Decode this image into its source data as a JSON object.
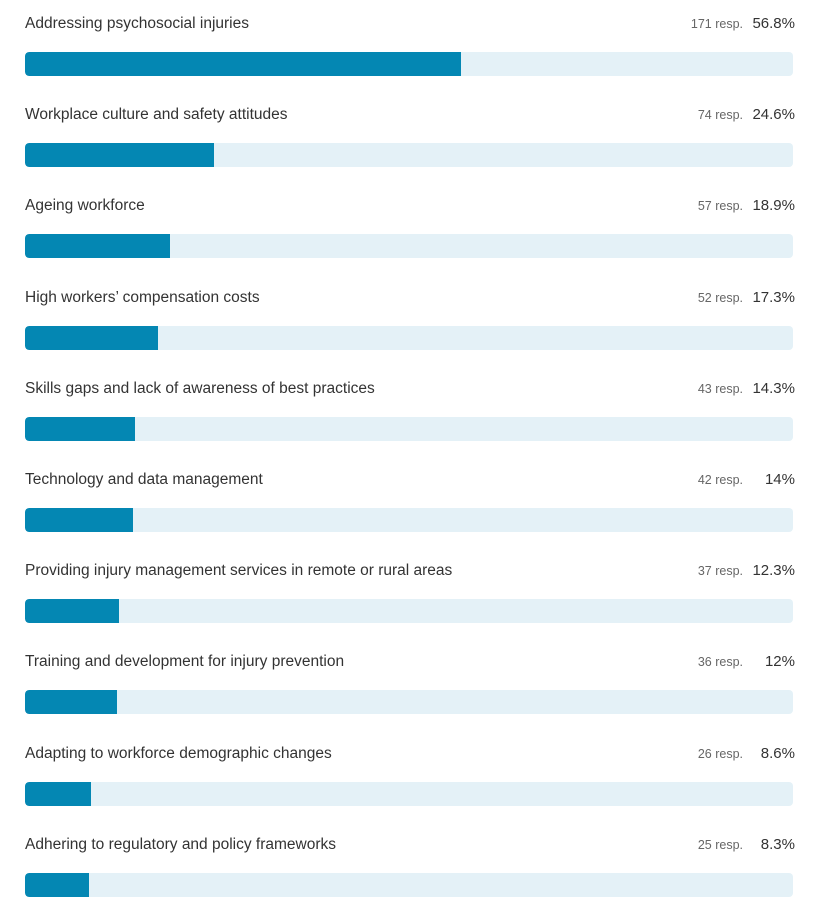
{
  "chart_data": {
    "type": "bar",
    "orientation": "horizontal",
    "colors": {
      "bar": "#0487b3",
      "track": "#e4f1f7"
    },
    "items": [
      {
        "label": "Addressing psychosocial injuries",
        "responses": "171 resp.",
        "percent_label": "56.8%",
        "percent": 56.8
      },
      {
        "label": "Workplace culture and safety attitudes",
        "responses": "74 resp.",
        "percent_label": "24.6%",
        "percent": 24.6
      },
      {
        "label": "Ageing workforce",
        "responses": "57 resp.",
        "percent_label": "18.9%",
        "percent": 18.9
      },
      {
        "label": "High workers’ compensation costs",
        "responses": "52 resp.",
        "percent_label": "17.3%",
        "percent": 17.3
      },
      {
        "label": "Skills gaps and lack of awareness of best practices",
        "responses": "43 resp.",
        "percent_label": "14.3%",
        "percent": 14.3
      },
      {
        "label": "Technology and data management",
        "responses": "42 resp.",
        "percent_label": "14%",
        "percent": 14
      },
      {
        "label": "Providing injury management services in remote or rural areas",
        "responses": "37 resp.",
        "percent_label": "12.3%",
        "percent": 12.3
      },
      {
        "label": "Training and development for injury prevention",
        "responses": "36 resp.",
        "percent_label": "12%",
        "percent": 12
      },
      {
        "label": "Adapting to workforce demographic changes",
        "responses": "26 resp.",
        "percent_label": "8.6%",
        "percent": 8.6
      },
      {
        "label": "Adhering to regulatory and policy frameworks",
        "responses": "25 resp.",
        "percent_label": "8.3%",
        "percent": 8.3
      }
    ]
  }
}
